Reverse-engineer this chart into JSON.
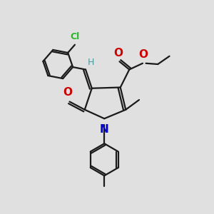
{
  "bg_color": "#e0e0e0",
  "bond_color": "#1a1a1a",
  "cl_color": "#2db52d",
  "o_color": "#cc0000",
  "n_color": "#0000cc",
  "h_color": "#4a9a9a",
  "lw": 1.6,
  "figsize": [
    3.0,
    3.0
  ],
  "dpi": 100,
  "xlim": [
    0,
    12
  ],
  "ylim": [
    0,
    12
  ]
}
